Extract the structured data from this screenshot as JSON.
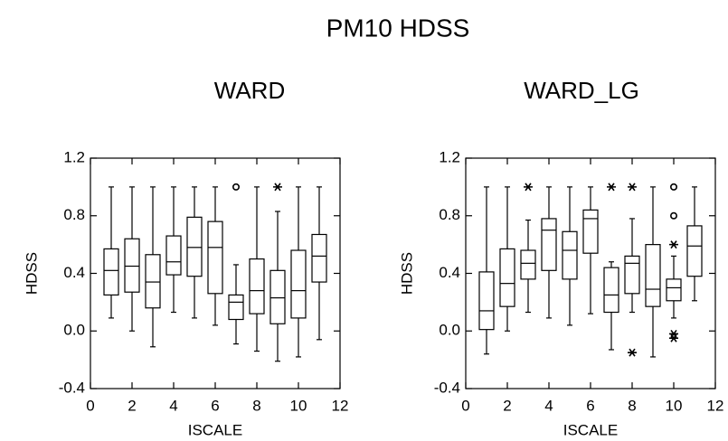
{
  "title": "PM10 HDSS",
  "chart_data": [
    {
      "type": "box",
      "title": "WARD",
      "xlabel": "ISCALE",
      "ylabel": "HDSS",
      "xlim": [
        0,
        12
      ],
      "xticks": [
        0,
        2,
        4,
        6,
        8,
        10,
        12
      ],
      "ylim": [
        -0.4,
        1.2
      ],
      "yticks": [
        1.2,
        0.8,
        0.4,
        {
          "value": 0,
          "label": "0.0"
        },
        -0.4
      ],
      "x": [
        1,
        2,
        3,
        4,
        5,
        6,
        7,
        8,
        9,
        10,
        11
      ],
      "whisker_low": [
        0.09,
        0.0,
        -0.11,
        0.13,
        0.09,
        0.04,
        -0.09,
        -0.14,
        -0.21,
        -0.18,
        -0.06
      ],
      "q1": [
        0.25,
        0.27,
        0.16,
        0.39,
        0.38,
        0.26,
        0.08,
        0.12,
        0.05,
        0.09,
        0.34
      ],
      "median": [
        0.42,
        0.45,
        0.34,
        0.48,
        0.58,
        0.58,
        0.2,
        0.28,
        0.23,
        0.28,
        0.52
      ],
      "q3": [
        0.57,
        0.64,
        0.53,
        0.66,
        0.79,
        0.76,
        0.25,
        0.5,
        0.42,
        0.56,
        0.67
      ],
      "whisker_high": [
        1.0,
        1.0,
        1.0,
        1.0,
        1.0,
        1.0,
        0.46,
        1.0,
        0.83,
        1.0,
        1.0
      ],
      "outliers": [
        {
          "x": 7,
          "y": 1.0,
          "marker": "circle"
        },
        {
          "x": 9,
          "y": 1.0,
          "marker": "star"
        }
      ]
    },
    {
      "type": "box",
      "title": "WARD_LG",
      "xlabel": "ISCALE",
      "ylabel": "HDSS",
      "xlim": [
        0,
        12
      ],
      "xticks": [
        0,
        2,
        4,
        6,
        8,
        10,
        12
      ],
      "ylim": [
        -0.4,
        1.2
      ],
      "yticks": [
        1.2,
        0.8,
        0.4,
        {
          "value": 0,
          "label": "0.0"
        },
        -0.4
      ],
      "x": [
        1,
        2,
        3,
        4,
        5,
        6,
        7,
        8,
        9,
        10,
        11
      ],
      "whisker_low": [
        -0.16,
        0.0,
        0.13,
        0.09,
        0.04,
        0.12,
        -0.13,
        0.13,
        -0.18,
        0.09,
        0.21
      ],
      "q1": [
        0.01,
        0.17,
        0.36,
        0.42,
        0.36,
        0.54,
        0.13,
        0.26,
        0.17,
        0.21,
        0.38
      ],
      "median": [
        0.14,
        0.33,
        0.47,
        0.7,
        0.56,
        0.78,
        0.25,
        0.47,
        0.29,
        0.3,
        0.59
      ],
      "q3": [
        0.41,
        0.57,
        0.56,
        0.78,
        0.69,
        0.84,
        0.44,
        0.52,
        0.6,
        0.36,
        0.73
      ],
      "whisker_high": [
        1.0,
        1.0,
        0.77,
        1.0,
        1.0,
        1.0,
        0.48,
        0.78,
        1.0,
        0.52,
        1.0
      ],
      "outliers": [
        {
          "x": 3,
          "y": 1.0,
          "marker": "star"
        },
        {
          "x": 7,
          "y": 1.0,
          "marker": "star"
        },
        {
          "x": 8,
          "y": 1.0,
          "marker": "star"
        },
        {
          "x": 8,
          "y": -0.15,
          "marker": "star"
        },
        {
          "x": 10,
          "y": 1.0,
          "marker": "circle"
        },
        {
          "x": 10,
          "y": 0.8,
          "marker": "circle"
        },
        {
          "x": 10,
          "y": 0.6,
          "marker": "star"
        },
        {
          "x": 10,
          "y": -0.02,
          "marker": "star"
        },
        {
          "x": 10,
          "y": -0.05,
          "marker": "star"
        }
      ]
    }
  ]
}
